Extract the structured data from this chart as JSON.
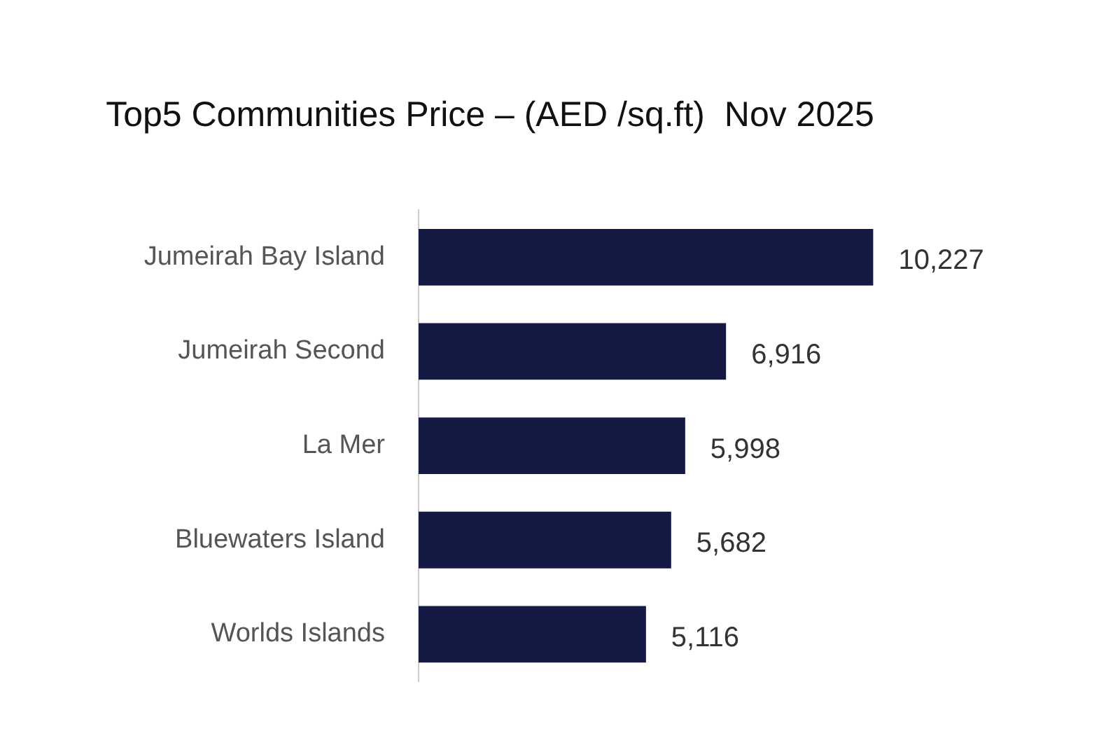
{
  "chart_data": {
    "type": "bar",
    "orientation": "horizontal",
    "title": "Top5 Communities Price – (AED /sq.ft)  Nov 2025",
    "categories": [
      "Jumeirah Bay Island",
      "Jumeirah Second",
      "La Mer",
      "Bluewaters Island",
      "Worlds Islands"
    ],
    "values": [
      10227,
      6916,
      5998,
      5682,
      5116
    ],
    "color": "#151a45",
    "value_labels": [
      "10,227",
      "6,916",
      "5,998",
      "5,682",
      "5,116"
    ],
    "tick_labels": "y"
  }
}
